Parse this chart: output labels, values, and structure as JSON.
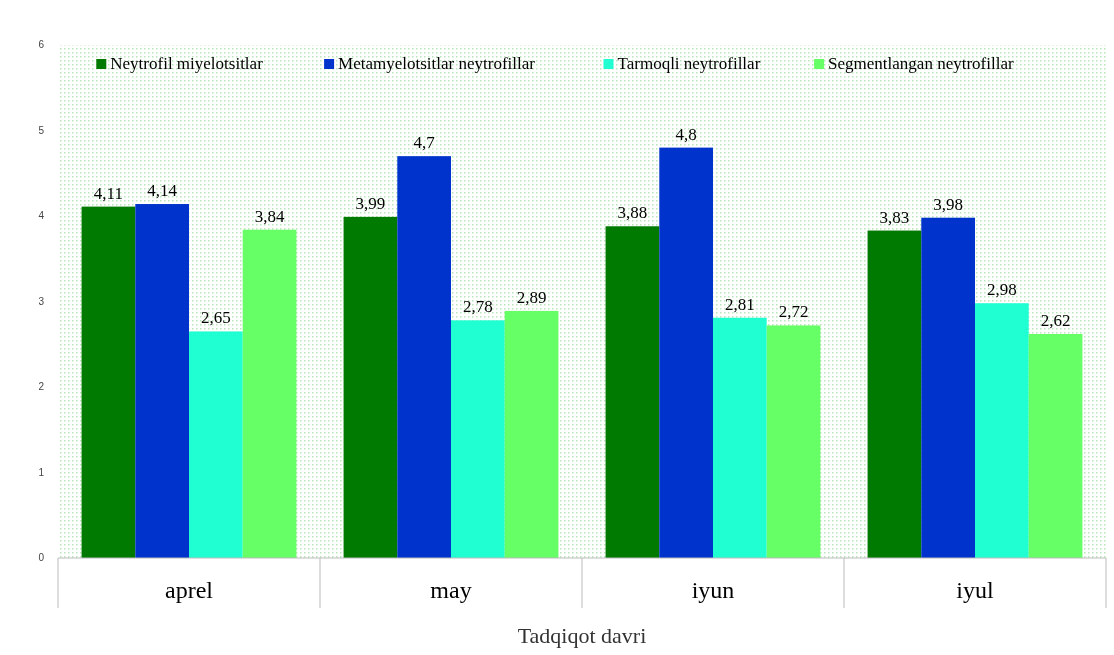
{
  "chart_data": {
    "type": "bar",
    "xlabel": "Tadqiqot davri",
    "categories": [
      "aprel",
      "may",
      "iyun",
      "iyul"
    ],
    "series": [
      {
        "name": "Neytrofil miyelotsitlar",
        "color": "#007a00",
        "values": [
          4.11,
          3.99,
          3.88,
          3.83
        ],
        "value_labels": [
          "4,11",
          "3,99",
          "3,88",
          "3,83"
        ]
      },
      {
        "name": "Metamyelotsitlar neytrofillar",
        "color": "#0033cc",
        "values": [
          4.14,
          4.7,
          4.8,
          3.98
        ],
        "value_labels": [
          "4,14",
          "4,7",
          "4,8",
          "3,98"
        ]
      },
      {
        "name": "Tarmoqli neytrofillar",
        "color": "#1fffd2",
        "values": [
          2.65,
          2.78,
          2.81,
          2.98
        ],
        "value_labels": [
          "2,65",
          "2,78",
          "2,81",
          "2,98"
        ]
      },
      {
        "name": "Segmentlangan neytrofillar",
        "color": "#66ff66",
        "values": [
          3.84,
          2.89,
          2.72,
          2.62
        ],
        "value_labels": [
          "3,84",
          "2,89",
          "2,72",
          "2,62"
        ]
      }
    ],
    "ylim": [
      0,
      6
    ],
    "yticks": [
      0,
      1,
      2,
      3,
      4,
      5,
      6
    ],
    "legend": "top"
  }
}
